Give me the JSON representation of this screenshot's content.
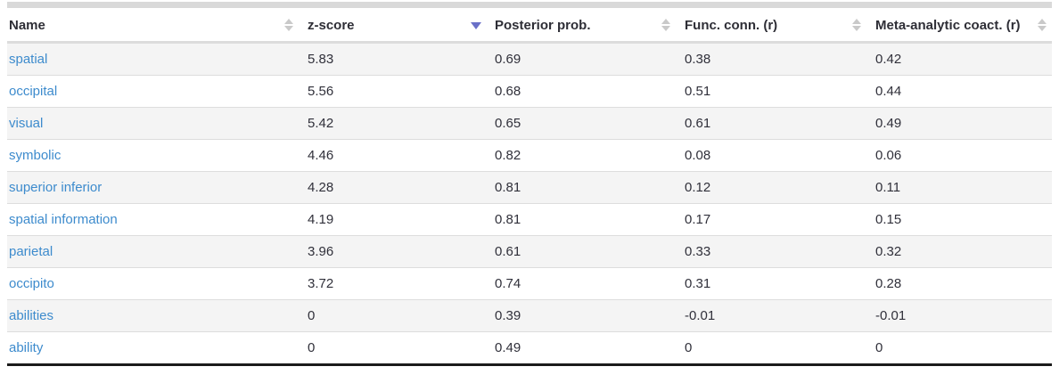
{
  "table": {
    "sort_state": {
      "column": "z-score",
      "direction": "descending"
    },
    "columns": [
      {
        "label": "Name",
        "sort": "none"
      },
      {
        "label": "z-score",
        "sort": "desc"
      },
      {
        "label": "Posterior prob.",
        "sort": "none"
      },
      {
        "label": "Func. conn. (r)",
        "sort": "none"
      },
      {
        "label": "Meta-analytic coact. (r)",
        "sort": "none"
      }
    ],
    "rows": [
      {
        "name": "spatial",
        "z": "5.83",
        "post": "0.69",
        "func": "0.38",
        "meta": "0.42"
      },
      {
        "name": "occipital",
        "z": "5.56",
        "post": "0.68",
        "func": "0.51",
        "meta": "0.44"
      },
      {
        "name": "visual",
        "z": "5.42",
        "post": "0.65",
        "func": "0.61",
        "meta": "0.49"
      },
      {
        "name": "symbolic",
        "z": "4.46",
        "post": "0.82",
        "func": "0.08",
        "meta": "0.06"
      },
      {
        "name": "superior inferior",
        "z": "4.28",
        "post": "0.81",
        "func": "0.12",
        "meta": "0.11"
      },
      {
        "name": "spatial information",
        "z": "4.19",
        "post": "0.81",
        "func": "0.17",
        "meta": "0.15"
      },
      {
        "name": "parietal",
        "z": "3.96",
        "post": "0.61",
        "func": "0.33",
        "meta": "0.32"
      },
      {
        "name": "occipito",
        "z": "3.72",
        "post": "0.74",
        "func": "0.31",
        "meta": "0.28"
      },
      {
        "name": "abilities",
        "z": "0",
        "post": "0.39",
        "func": "-0.01",
        "meta": "-0.01"
      },
      {
        "name": "ability",
        "z": "0",
        "post": "0.49",
        "func": "0",
        "meta": "0"
      }
    ]
  },
  "colors": {
    "sort_active_arrow": "#6a70c8",
    "sort_inactive_arrow": "#c9c9c9",
    "link_blue": "#3d8bcd",
    "text_dark": "#30303a",
    "row_stripe": "#f4f4f4",
    "row_separator": "#dddddd",
    "header_border": "#dcdcdc",
    "table_bottom_border": "#1b1b1b",
    "top_bar": "#d9d9d9"
  }
}
